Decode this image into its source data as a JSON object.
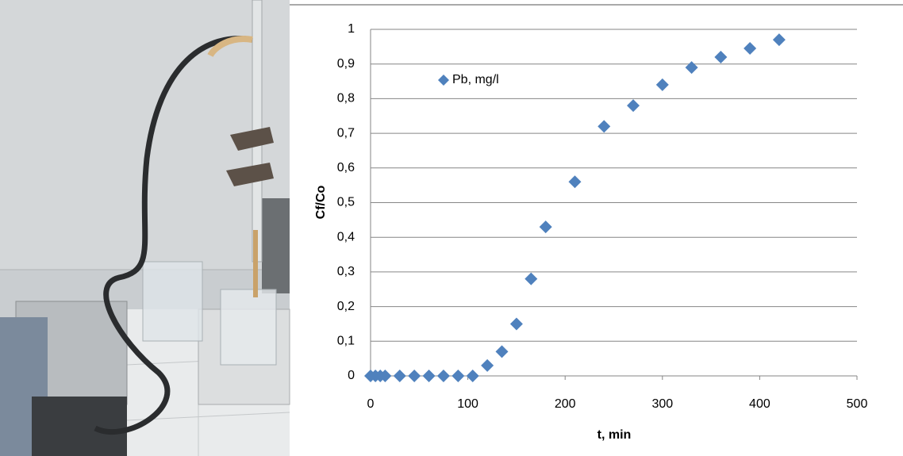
{
  "chart_data": {
    "type": "scatter",
    "xlabel": "t, min",
    "ylabel": "Cf/Co",
    "x": [
      0,
      5,
      10,
      15,
      30,
      45,
      60,
      75,
      90,
      105,
      120,
      135,
      150,
      165,
      180,
      210,
      240,
      270,
      300,
      330,
      360,
      390,
      420
    ],
    "series": [
      {
        "name": "Pb, mg/l",
        "color": "#4f81bd",
        "values": [
          0,
          0,
          0,
          0,
          0,
          0,
          0,
          0,
          0,
          0,
          0.03,
          0.07,
          0.15,
          0.28,
          0.43,
          0.56,
          0.72,
          0.78,
          0.84,
          0.89,
          0.92,
          0.945,
          0.97
        ]
      }
    ],
    "xlim": [
      0,
      500
    ],
    "xticks": [
      0,
      100,
      200,
      300,
      400,
      500
    ],
    "ylim": [
      0,
      1
    ],
    "yticks": [
      0,
      {
        "value": 0.1,
        "label": "0,1"
      },
      {
        "value": 0.2,
        "label": "0,2"
      },
      {
        "value": 0.3,
        "label": "0,3"
      },
      {
        "value": 0.4,
        "label": "0,4"
      },
      {
        "value": 0.5,
        "label": "0,5"
      },
      {
        "value": 0.6,
        "label": "0,6"
      },
      {
        "value": 0.7,
        "label": "0,7"
      },
      {
        "value": 0.8,
        "label": "0,8"
      },
      {
        "value": 0.9,
        "label": "0,9"
      },
      1
    ],
    "grid": true,
    "legend": "upper left"
  }
}
